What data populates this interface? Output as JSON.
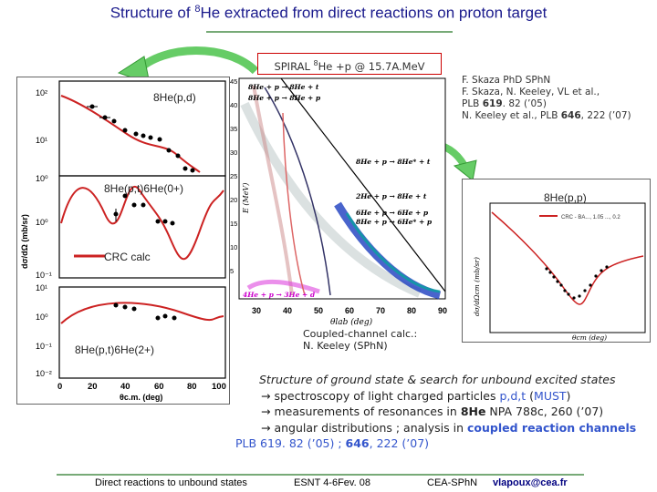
{
  "title": "Structure of 8He extracted from direct reactions on proton target",
  "title_parts": {
    "pre": "Structure of ",
    "sup": "8",
    "post": "He extracted from direct reactions on proton target"
  },
  "spiral": {
    "pre": "SPIRAL ",
    "sup": "8",
    "post": "He +p @ 15.7A.MeV"
  },
  "refs": {
    "line1": "F. Skaza PhD SPhN",
    "line2": "F. Skaza, N. Keeley, VL et al.,",
    "line3a": "PLB ",
    "line3b": "619",
    "line3c": ". 82 (’05)",
    "line4a": "N. Keeley et al., PLB ",
    "line4b": "646",
    "line4c": ", 222 (’07)"
  },
  "left_panel": {
    "label_pd": "8He(p,d)",
    "label_pt0": "8He(p,t)6He(0+)",
    "label_crc": "CRC calc",
    "label_pt2": "8He(p,t)6He(2+)",
    "ylabel": "dσ/dΩ (mb/sr)",
    "xlabel": "θc.m. (deg)",
    "xticks": [
      "0",
      "20",
      "40",
      "60",
      "80",
      "100"
    ],
    "yticks_top": [
      "10²",
      "10¹",
      "10⁰"
    ],
    "yticks_mid": [
      "10⁰",
      "10⁻¹"
    ],
    "yticks_bot": [
      "10¹",
      "10⁰",
      "10⁻¹",
      "10⁻²"
    ]
  },
  "mid_panel": {
    "ylabel": "E (MeV)",
    "xlabel": "θlab (deg)",
    "xticks": [
      "30",
      "40",
      "50",
      "60",
      "70",
      "80",
      "90"
    ],
    "yticks": [
      "45",
      "40",
      "35",
      "30",
      "25",
      "20",
      "15",
      "10",
      "5"
    ],
    "lines": [
      "8He + p → 8He + t",
      "8He + p → 8He + p",
      "8He + p → 8He* + t",
      "2He + p → 8He + t",
      "6He + p → 6He + p",
      "8He + p → 6He* + p",
      "4He + p → 3He + d"
    ]
  },
  "right_panel": {
    "label": "8He(p,p)",
    "ylabel": "dσ/dΩcm (mb/sr)",
    "xlabel": "θcm (deg)",
    "legend": "CRC - BA..., 1.05 ..., 0.2"
  },
  "coupled": {
    "line1": "Coupled-channel calc.:",
    "line2": "N. Keeley (SPhN)"
  },
  "summary": {
    "line1": "Structure of ground state & search for unbound excited states",
    "line2a": "→ spectroscopy of light charged particles ",
    "line2b": "p,d,t",
    "line2c": " (",
    "line2d": "MUST",
    "line2e": ")",
    "line3a": "→ measurements of resonances in ",
    "line3b": "8He",
    "line3c": " NPA 788c, 260 (’07)",
    "line4a": "→ angular distributions ; analysis in ",
    "line4b": "coupled reaction channels",
    "line5a": "PLB 619. 82 (’05) ; ",
    "line5b": "646",
    "line5c": ", 222 (’07)"
  },
  "footer": {
    "left": "Direct reactions to unbound states",
    "mid": "ESNT 4-6Fev. 08",
    "right1": "CEA-SPhN",
    "right2": "vlapoux@cea.fr"
  },
  "colors": {
    "title": "#1a1a8c",
    "data": "#000000",
    "fit": "#cc2222",
    "arrow": "#66cc66",
    "accent_blue": "#3355cc",
    "rule": "#77aa77"
  }
}
